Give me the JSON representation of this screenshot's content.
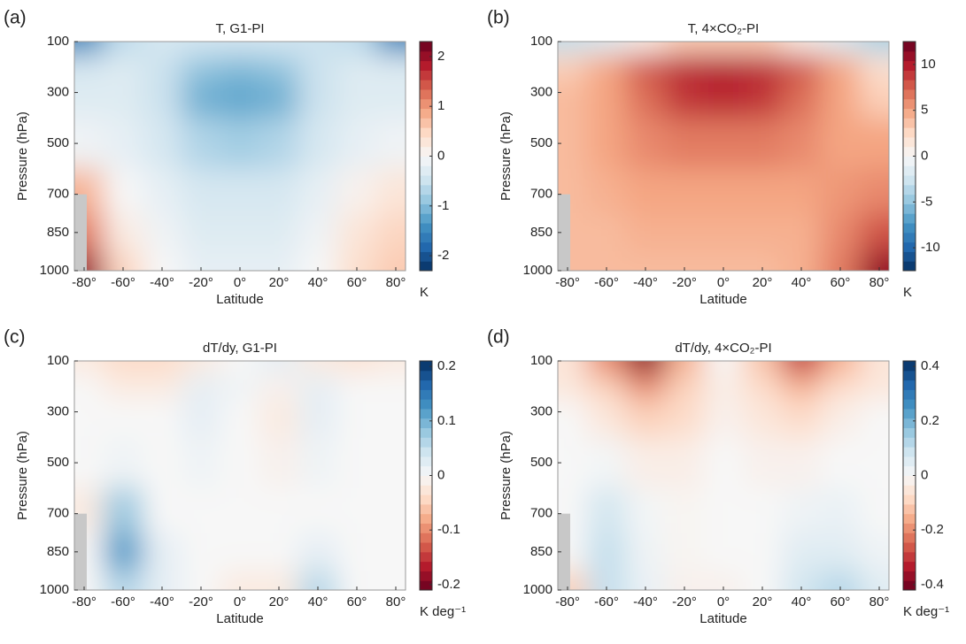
{
  "chart_data": [
    {
      "type": "heatmap",
      "panel": "(a)",
      "title": "T, G1-PI",
      "xlabel": "Latitude",
      "ylabel": "Pressure (hPa)",
      "colorbar_label": "K",
      "cmap": "RdBu_r",
      "x": [
        -80,
        -60,
        -40,
        -20,
        0,
        20,
        40,
        60,
        80
      ],
      "y": [
        100,
        200,
        300,
        500,
        700,
        850,
        1000
      ],
      "z": [
        [
          -1.5,
          -0.6,
          -0.4,
          -0.4,
          -0.4,
          -0.4,
          -0.5,
          -0.6,
          -1.5
        ],
        [
          -0.4,
          -0.3,
          -0.5,
          -0.9,
          -1.0,
          -0.9,
          -0.5,
          -0.3,
          -0.3
        ],
        [
          -0.3,
          -0.3,
          -0.5,
          -1.1,
          -1.2,
          -1.1,
          -0.5,
          -0.3,
          -0.3
        ],
        [
          -0.1,
          -0.2,
          -0.4,
          -0.7,
          -0.8,
          -0.7,
          -0.4,
          -0.2,
          -0.1
        ],
        [
          0.8,
          0.0,
          -0.2,
          -0.4,
          -0.4,
          -0.4,
          -0.2,
          0.1,
          0.3
        ],
        [
          1.2,
          0.2,
          -0.1,
          -0.3,
          -0.3,
          -0.3,
          -0.1,
          0.3,
          0.5
        ],
        [
          2.0,
          0.5,
          0.0,
          -0.2,
          -0.2,
          -0.2,
          0.0,
          0.4,
          0.6
        ]
      ],
      "xlim": [
        -85,
        85
      ],
      "ylim": [
        1000,
        100
      ],
      "xticks": [
        {
          "value": -80,
          "label": "-80°"
        },
        {
          "value": -60,
          "label": "-60°"
        },
        {
          "value": -40,
          "label": "-40°"
        },
        {
          "value": -20,
          "label": "-20°"
        },
        {
          "value": 0,
          "label": "0°"
        },
        {
          "value": 20,
          "label": "20°"
        },
        {
          "value": 40,
          "label": "40°"
        },
        {
          "value": 60,
          "label": "60°"
        },
        {
          "value": 80,
          "label": "80°"
        }
      ],
      "yticks": [
        100,
        300,
        500,
        700,
        850,
        1000
      ],
      "clim": [
        -2.3,
        2.3
      ],
      "cticks": [
        -2,
        -1,
        0,
        1,
        2
      ]
    },
    {
      "type": "heatmap",
      "panel": "(b)",
      "title": "T, 4×CO₂-PI",
      "xlabel": "Latitude",
      "ylabel": "Pressure (hPa)",
      "colorbar_label": "K",
      "cmap": "RdBu_r",
      "x": [
        -80,
        -60,
        -40,
        -20,
        0,
        20,
        40,
        60,
        80
      ],
      "y": [
        100,
        200,
        300,
        500,
        700,
        850,
        1000
      ],
      "z": [
        [
          -3,
          -2,
          1,
          3,
          3,
          3,
          1,
          -2,
          -4
        ],
        [
          3,
          5,
          8,
          9.5,
          10,
          9.5,
          8,
          5,
          2
        ],
        [
          4,
          5,
          7,
          9,
          9.5,
          9,
          7,
          5,
          3
        ],
        [
          4,
          5,
          6,
          6.5,
          6.5,
          6.5,
          6,
          5,
          5
        ],
        [
          4,
          4.5,
          5,
          5,
          5,
          5,
          5,
          5.5,
          6
        ],
        [
          4,
          4,
          4.5,
          4.5,
          4.5,
          4.5,
          4.5,
          6,
          8
        ],
        [
          4,
          4,
          4,
          4,
          4,
          4,
          4.5,
          6.5,
          11
        ]
      ],
      "xlim": [
        -85,
        85
      ],
      "ylim": [
        1000,
        100
      ],
      "xticks": [
        {
          "value": -80,
          "label": "-80°"
        },
        {
          "value": -60,
          "label": "-60°"
        },
        {
          "value": -40,
          "label": "-40°"
        },
        {
          "value": -20,
          "label": "-20°"
        },
        {
          "value": 0,
          "label": "0°"
        },
        {
          "value": 20,
          "label": "20°"
        },
        {
          "value": 40,
          "label": "40°"
        },
        {
          "value": 60,
          "label": "60°"
        },
        {
          "value": 80,
          "label": "80°"
        }
      ],
      "yticks": [
        100,
        300,
        500,
        700,
        850,
        1000
      ],
      "clim": [
        -12.5,
        12.5
      ],
      "cticks": [
        -10,
        -5,
        0,
        5,
        10
      ]
    },
    {
      "type": "heatmap",
      "panel": "(c)",
      "title": "dT/dy, G1-PI",
      "xlabel": "Latitude",
      "ylabel": "Pressure (hPa)",
      "colorbar_label": "K deg⁻¹",
      "cmap": "RdBu",
      "x": [
        -80,
        -60,
        -40,
        -20,
        0,
        20,
        40,
        60,
        80
      ],
      "y": [
        100,
        200,
        300,
        500,
        700,
        850,
        1000
      ],
      "z": [
        [
          -0.02,
          -0.04,
          -0.04,
          -0.02,
          0,
          0.02,
          -0.02,
          -0.03,
          -0.02
        ],
        [
          0,
          -0.02,
          -0.02,
          0.02,
          0.01,
          -0.01,
          0.02,
          0,
          0
        ],
        [
          0,
          0,
          0,
          0.02,
          0,
          -0.02,
          0.02,
          0,
          0
        ],
        [
          0,
          0.01,
          0,
          0.01,
          0,
          -0.01,
          0.01,
          0,
          0
        ],
        [
          -0.02,
          0.08,
          0,
          0,
          0,
          0,
          0,
          0,
          0
        ],
        [
          0,
          0.12,
          0.02,
          0,
          0,
          0,
          0.02,
          0,
          0
        ],
        [
          0,
          0.06,
          0.02,
          0,
          -0.02,
          -0.02,
          0.06,
          0,
          0
        ]
      ],
      "xlim": [
        -85,
        85
      ],
      "ylim": [
        1000,
        100
      ],
      "xticks": [
        {
          "value": -80,
          "label": "-80°"
        },
        {
          "value": -60,
          "label": "-60°"
        },
        {
          "value": -40,
          "label": "-40°"
        },
        {
          "value": -20,
          "label": "-20°"
        },
        {
          "value": 0,
          "label": "0°"
        },
        {
          "value": 20,
          "label": "20°"
        },
        {
          "value": 40,
          "label": "40°"
        },
        {
          "value": 60,
          "label": "60°"
        },
        {
          "value": 80,
          "label": "80°"
        }
      ],
      "yticks": [
        100,
        300,
        500,
        700,
        850,
        1000
      ],
      "clim": [
        -0.21,
        0.21
      ],
      "cticks": [
        -0.2,
        -0.1,
        0,
        0.1,
        0.2
      ]
    },
    {
      "type": "heatmap",
      "panel": "(d)",
      "title": "dT/dy, 4×CO₂-PI",
      "xlabel": "Latitude",
      "ylabel": "Pressure (hPa)",
      "colorbar_label": "K deg⁻¹",
      "cmap": "RdBu",
      "x": [
        -80,
        -60,
        -40,
        -20,
        0,
        20,
        40,
        60,
        80
      ],
      "y": [
        100,
        200,
        300,
        500,
        700,
        850,
        1000
      ],
      "z": [
        [
          -0.05,
          -0.2,
          -0.38,
          -0.15,
          0,
          -0.12,
          -0.3,
          -0.15,
          -0.05
        ],
        [
          -0.05,
          -0.1,
          -0.2,
          -0.1,
          -0.03,
          -0.08,
          -0.15,
          -0.08,
          -0.05
        ],
        [
          0,
          -0.05,
          -0.1,
          -0.08,
          -0.02,
          -0.05,
          -0.08,
          -0.03,
          0
        ],
        [
          0,
          0.01,
          -0.03,
          -0.03,
          0,
          -0.02,
          -0.02,
          0,
          0
        ],
        [
          0,
          0.08,
          0.01,
          -0.01,
          0,
          0,
          0.02,
          0.03,
          0
        ],
        [
          0,
          0.1,
          0.02,
          -0.01,
          0,
          0,
          0.05,
          0.05,
          0.02
        ],
        [
          -0.1,
          0.1,
          0.03,
          -0.02,
          -0.02,
          0,
          0.08,
          0.12,
          0.05
        ]
      ],
      "xlim": [
        -85,
        85
      ],
      "ylim": [
        1000,
        100
      ],
      "xticks": [
        {
          "value": -80,
          "label": "-80°"
        },
        {
          "value": -60,
          "label": "-60°"
        },
        {
          "value": -40,
          "label": "-40°"
        },
        {
          "value": -20,
          "label": "-20°"
        },
        {
          "value": 0,
          "label": "0°"
        },
        {
          "value": 20,
          "label": "20°"
        },
        {
          "value": 40,
          "label": "40°"
        },
        {
          "value": 60,
          "label": "60°"
        },
        {
          "value": 80,
          "label": "80°"
        }
      ],
      "yticks": [
        100,
        300,
        500,
        700,
        850,
        1000
      ],
      "clim": [
        -0.42,
        0.42
      ],
      "cticks": [
        -0.4,
        -0.2,
        0,
        0.2,
        0.4
      ]
    }
  ]
}
